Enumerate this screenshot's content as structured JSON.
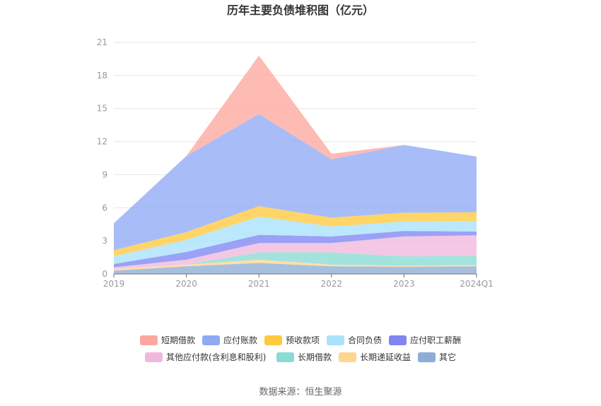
{
  "chart_data": {
    "type": "area",
    "stacked": true,
    "title": "历年主要负债堆积图（亿元）",
    "categories": [
      "2019",
      "2020",
      "2021",
      "2022",
      "2023",
      "2024Q1"
    ],
    "ylim": [
      0,
      21
    ],
    "yticks": [
      0,
      3,
      6,
      9,
      12,
      15,
      18,
      21
    ],
    "grid": true,
    "legend_position": "bottom",
    "series": [
      {
        "name": "其它",
        "color": "#8eadd6",
        "values": [
          0.3,
          0.7,
          1.0,
          0.7,
          0.65,
          0.7
        ]
      },
      {
        "name": "长期递延收益",
        "color": "#ffd68f",
        "values": [
          0.15,
          0.15,
          0.3,
          0.15,
          0.1,
          0.1
        ]
      },
      {
        "name": "长期借款",
        "color": "#89dbd3",
        "values": [
          0.0,
          0.0,
          0.65,
          1.1,
          0.85,
          0.85
        ]
      },
      {
        "name": "其他应付款(含利息和股利)",
        "color": "#f0b8dc",
        "values": [
          0.15,
          0.45,
          0.85,
          0.85,
          1.8,
          1.85
        ]
      },
      {
        "name": "应付职工薪酬",
        "color": "#7f86f2",
        "values": [
          0.3,
          0.7,
          0.75,
          0.6,
          0.5,
          0.35
        ]
      },
      {
        "name": "合同负债",
        "color": "#a8e2fb",
        "values": [
          0.7,
          1.1,
          1.65,
          0.9,
          0.85,
          0.95
        ]
      },
      {
        "name": "预收款项",
        "color": "#ffc93d",
        "values": [
          0.55,
          0.7,
          0.95,
          0.8,
          0.8,
          0.8
        ]
      },
      {
        "name": "应付账款",
        "color": "#8fa9f5",
        "values": [
          2.45,
          6.9,
          8.35,
          5.3,
          6.15,
          5.05
        ]
      },
      {
        "name": "短期借款",
        "color": "#fca89e",
        "values": [
          0.0,
          0.0,
          5.3,
          0.5,
          0.0,
          0.0
        ]
      }
    ],
    "legend_order": [
      "短期借款",
      "应付账款",
      "预收款项",
      "合同负债",
      "应付职工薪酬",
      "其他应付款(含利息和股利)",
      "长期借款",
      "长期递延收益",
      "其它"
    ]
  },
  "source_text": "数据来源：恒生聚源"
}
